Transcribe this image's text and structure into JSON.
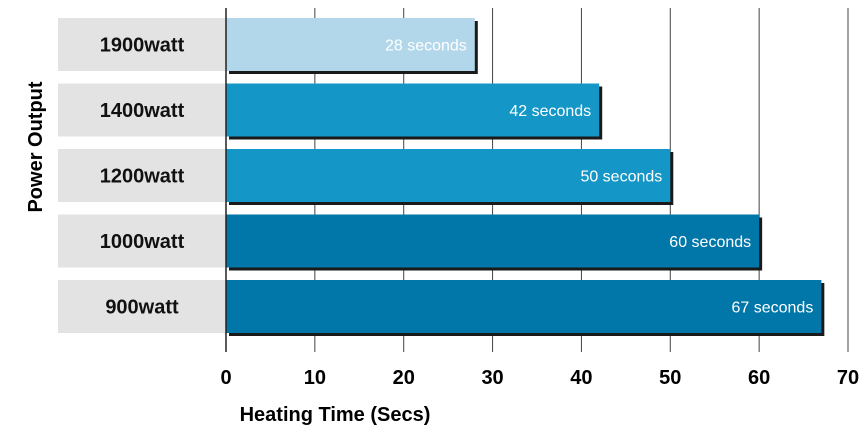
{
  "chart_data": {
    "type": "bar",
    "orientation": "horizontal",
    "categories": [
      "1900watt",
      "1400watt",
      "1200watt",
      "1000watt",
      "900watt"
    ],
    "values": [
      28,
      42,
      50,
      60,
      67
    ],
    "value_labels": [
      "28 seconds",
      "42 seconds",
      "50 seconds",
      "60 seconds",
      "67 seconds"
    ],
    "bar_colors": [
      "#b3d7ea",
      "#1497c6",
      "#1497c6",
      "#0077a8",
      "#0077a8"
    ],
    "xlabel": "Heating Time (Secs)",
    "ylabel": "Power Output",
    "xlim": [
      0,
      70
    ],
    "x_ticks": [
      "0",
      "10",
      "20",
      "30",
      "40",
      "50",
      "60",
      "70"
    ],
    "grid": "vertical"
  }
}
